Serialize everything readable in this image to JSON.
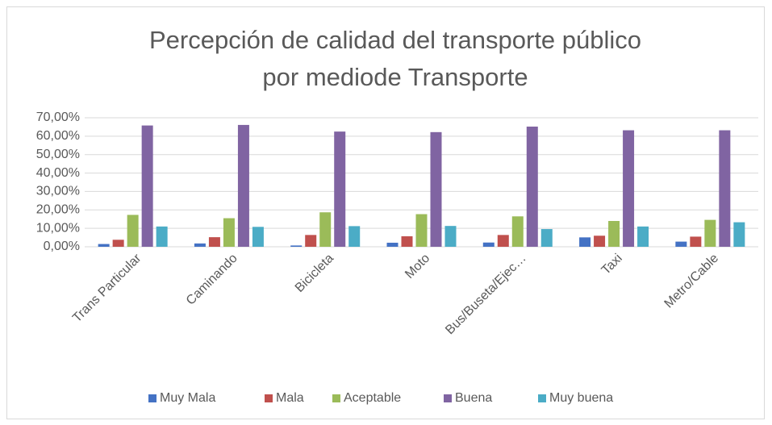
{
  "chart_data": {
    "type": "bar",
    "title": [
      "Percepción de calidad del transporte público",
      "por mediode Transporte"
    ],
    "categories": [
      "Trans Particular",
      "Caminando",
      "Bicicleta",
      "Moto",
      "Bus/Buseta/Ejec…",
      "Taxi",
      "Metro/Cable"
    ],
    "series": [
      {
        "name": "Muy Mala",
        "color": "#4472c4",
        "values": [
          1.5,
          1.8,
          0.7,
          2.2,
          2.3,
          5.1,
          2.8
        ]
      },
      {
        "name": "Mala",
        "color": "#c0504d",
        "values": [
          3.8,
          5.2,
          6.4,
          5.7,
          6.4,
          6.0,
          5.5
        ]
      },
      {
        "name": "Aceptable",
        "color": "#9bbb59",
        "values": [
          17.3,
          15.5,
          18.7,
          17.7,
          16.5,
          14.0,
          14.6
        ]
      },
      {
        "name": "Buena",
        "color": "#8064a2",
        "values": [
          65.8,
          66.1,
          62.5,
          62.2,
          65.2,
          63.2,
          63.2
        ]
      },
      {
        "name": "Muy buena",
        "color": "#4bacc6",
        "values": [
          11.0,
          10.8,
          11.2,
          11.3,
          9.6,
          11.0,
          13.3
        ]
      }
    ],
    "ylim": [
      0,
      70
    ],
    "yticks": [
      {
        "value": 0,
        "label": "0,00%"
      },
      {
        "value": 10,
        "label": "10,00%"
      },
      {
        "value": 20,
        "label": "20,00%"
      },
      {
        "value": 30,
        "label": "30,00%"
      },
      {
        "value": 40,
        "label": "40,00%"
      },
      {
        "value": 50,
        "label": "50,00%"
      },
      {
        "value": 60,
        "label": "60,00%"
      },
      {
        "value": 70,
        "label": "70,00%"
      }
    ],
    "grid": true,
    "legend": "bottom"
  }
}
